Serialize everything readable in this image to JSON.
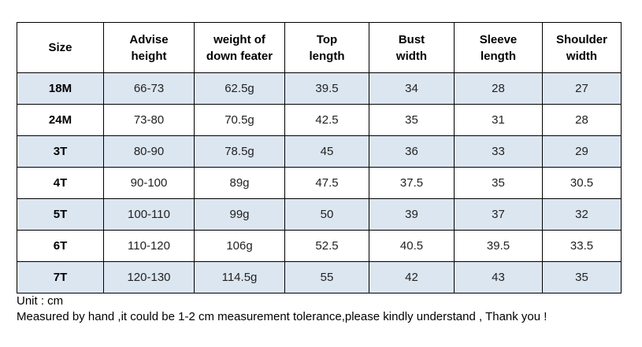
{
  "table": {
    "headers": [
      [
        "Size"
      ],
      [
        "Advise",
        "height"
      ],
      [
        "weight of",
        "down feater"
      ],
      [
        "Top",
        "length"
      ],
      [
        "Bust",
        "width"
      ],
      [
        "Sleeve",
        "length"
      ],
      [
        "Shoulder",
        "width"
      ]
    ],
    "rows": [
      [
        "18M",
        "66-73",
        "62.5g",
        "39.5",
        "34",
        "28",
        "27"
      ],
      [
        "24M",
        "73-80",
        "70.5g",
        "42.5",
        "35",
        "31",
        "28"
      ],
      [
        "3T",
        "80-90",
        "78.5g",
        "45",
        "36",
        "33",
        "29"
      ],
      [
        "4T",
        "90-100",
        "89g",
        "47.5",
        "37.5",
        "35",
        "30.5"
      ],
      [
        "5T",
        "100-110",
        "99g",
        "50",
        "39",
        "37",
        "32"
      ],
      [
        "6T",
        "110-120",
        "106g",
        "52.5",
        "40.5",
        "39.5",
        "33.5"
      ],
      [
        "7T",
        "120-130",
        "114.5g",
        "55",
        "42",
        "43",
        "35"
      ]
    ],
    "shaded_row_color": "#dce6f1"
  },
  "notes": {
    "unit": "Unit : cm",
    "disclaimer": "Measured by hand ,it could be 1-2 cm measurement tolerance,please kindly understand , Thank you !"
  }
}
